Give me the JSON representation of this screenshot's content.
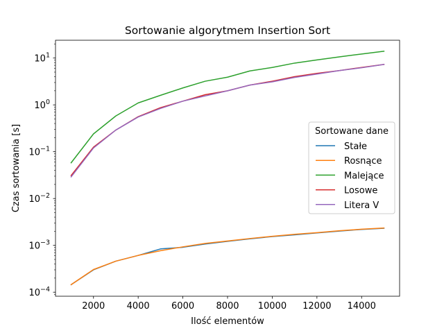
{
  "chart_data": {
    "type": "line",
    "title": "Sortowanie algorytmem Insertion Sort",
    "xlabel": "Ilość elementów",
    "ylabel": "Czas sortowania [s]",
    "xlim": [
      300,
      15700
    ],
    "ylim": [
      8.2e-05,
      24
    ],
    "yscale": "log",
    "grid": false,
    "x_ticks": [
      2000,
      4000,
      6000,
      8000,
      10000,
      12000,
      14000
    ],
    "x_tick_labels": [
      "2000",
      "4000",
      "6000",
      "8000",
      "10000",
      "12000",
      "14000"
    ],
    "y_ticks": [
      0.0001,
      0.001,
      0.01,
      0.1,
      1,
      10
    ],
    "y_tick_labels": [
      {
        "base": "10",
        "exp": "−4"
      },
      {
        "base": "10",
        "exp": "−3"
      },
      {
        "base": "10",
        "exp": "−2"
      },
      {
        "base": "10",
        "exp": "−1"
      },
      {
        "base": "10",
        "exp": "0"
      },
      {
        "base": "10",
        "exp": "1"
      }
    ],
    "legend": {
      "title": "Sortowane dane",
      "placement": "center-right"
    },
    "x": [
      1000,
      2000,
      3000,
      4000,
      5000,
      6000,
      7000,
      8000,
      9000,
      10000,
      11000,
      12000,
      13000,
      14000,
      15000
    ],
    "series": [
      {
        "name": "Stałe",
        "color": "#1f77b4",
        "values": [
          0.000145,
          0.0003,
          0.00046,
          0.00061,
          0.00084,
          0.00091,
          0.00107,
          0.00122,
          0.00138,
          0.00154,
          0.00168,
          0.00184,
          0.00202,
          0.00219,
          0.00232
        ]
      },
      {
        "name": "Rosnące",
        "color": "#ff7f0e",
        "values": [
          0.000145,
          0.000305,
          0.00046,
          0.00061,
          0.00077,
          0.00093,
          0.0011,
          0.00124,
          0.0014,
          0.00156,
          0.00172,
          0.00187,
          0.00205,
          0.00221,
          0.00235
        ]
      },
      {
        "name": "Malejące",
        "color": "#2ca02c",
        "values": [
          0.058,
          0.24,
          0.58,
          1.1,
          1.6,
          2.3,
          3.2,
          3.9,
          5.3,
          6.3,
          7.8,
          9.1,
          10.6,
          12.2,
          14.0
        ]
      },
      {
        "name": "Losowe",
        "color": "#d62728",
        "values": [
          0.031,
          0.125,
          0.29,
          0.56,
          0.87,
          1.2,
          1.65,
          2.0,
          2.65,
          3.2,
          4.0,
          4.7,
          5.4,
          6.3,
          7.3
        ]
      },
      {
        "name": "Litera V",
        "color": "#9467bd",
        "values": [
          0.029,
          0.12,
          0.29,
          0.55,
          0.84,
          1.2,
          1.55,
          2.0,
          2.65,
          3.1,
          3.85,
          4.55,
          5.4,
          6.2,
          7.3
        ]
      }
    ]
  }
}
